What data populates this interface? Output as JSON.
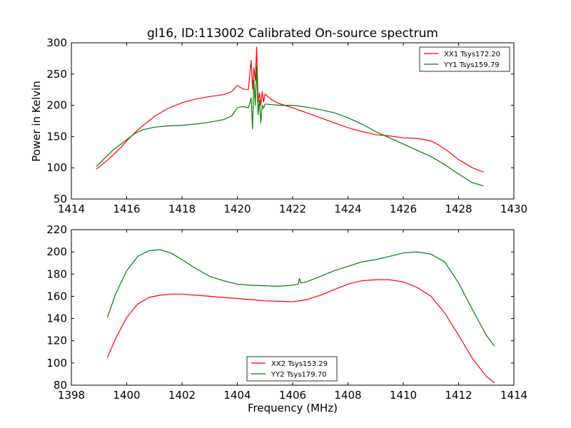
{
  "figure": {
    "title": "gl16, ID:113002 Calibrated On-source spectrum",
    "xlabel": "Frequency (MHz)",
    "ylabel": "Power in Kelvin"
  },
  "chart_data": [
    {
      "type": "line",
      "title": "gl16, ID:113002 Calibrated On-source spectrum",
      "xlabel": "",
      "ylabel": "Power in Kelvin",
      "xlim": [
        1414,
        1430
      ],
      "ylim": [
        50,
        300
      ],
      "xticks": [
        "1414",
        "1416",
        "1418",
        "1420",
        "1422",
        "1424",
        "1426",
        "1428",
        "1430"
      ],
      "yticks": [
        "50",
        "100",
        "150",
        "200",
        "250",
        "300"
      ],
      "legend_position": "top-right",
      "series": [
        {
          "name": "XX1 Tsys172.20",
          "color": "#ff0000",
          "x": [
            1414.9,
            1415.2,
            1415.5,
            1415.8,
            1416.0,
            1416.3,
            1416.6,
            1417.0,
            1417.5,
            1418.0,
            1418.5,
            1419.0,
            1419.5,
            1419.8,
            1420.0,
            1420.2,
            1420.4,
            1420.5,
            1420.55,
            1420.6,
            1420.65,
            1420.7,
            1420.75,
            1420.8,
            1420.85,
            1420.9,
            1420.95,
            1421.0,
            1421.2,
            1421.5,
            1422.0,
            1422.5,
            1423.0,
            1423.5,
            1424.0,
            1424.5,
            1425.0,
            1425.5,
            1426.0,
            1426.5,
            1427.0,
            1427.3,
            1427.6,
            1428.0,
            1428.5,
            1428.9
          ],
          "y": [
            98,
            108,
            120,
            133,
            143,
            156,
            168,
            182,
            195,
            204,
            210,
            214,
            217,
            222,
            232,
            226,
            225,
            272,
            226,
            260,
            240,
            293,
            205,
            220,
            200,
            222,
            205,
            218,
            210,
            203,
            196,
            188,
            180,
            172,
            164,
            158,
            153,
            151,
            148,
            147,
            143,
            136,
            127,
            113,
            100,
            93
          ]
        },
        {
          "name": "YY1 Tsys159.79",
          "color": "#008000",
          "x": [
            1414.9,
            1415.2,
            1415.5,
            1415.8,
            1416.0,
            1416.3,
            1416.6,
            1417.0,
            1417.5,
            1418.0,
            1418.5,
            1419.0,
            1419.5,
            1419.8,
            1420.0,
            1420.2,
            1420.4,
            1420.5,
            1420.55,
            1420.6,
            1420.65,
            1420.7,
            1420.75,
            1420.8,
            1420.85,
            1420.9,
            1420.95,
            1421.0,
            1421.5,
            1422.0,
            1422.5,
            1423.0,
            1423.5,
            1424.0,
            1424.5,
            1425.0,
            1425.5,
            1426.0,
            1426.5,
            1427.0,
            1427.5,
            1428.0,
            1428.5,
            1428.9
          ],
          "y": [
            102,
            115,
            128,
            138,
            145,
            155,
            161,
            165,
            167,
            168,
            170,
            173,
            177,
            183,
            196,
            198,
            196,
            212,
            162,
            240,
            200,
            262,
            185,
            208,
            172,
            200,
            195,
            202,
            200,
            200,
            197,
            193,
            188,
            180,
            170,
            158,
            148,
            138,
            128,
            118,
            105,
            90,
            76,
            71
          ]
        }
      ]
    },
    {
      "type": "line",
      "title": "",
      "xlabel": "Frequency (MHz)",
      "ylabel": "",
      "xlim": [
        1398,
        1414
      ],
      "ylim": [
        80,
        220
      ],
      "xticks": [
        "1398",
        "1400",
        "1402",
        "1404",
        "1406",
        "1408",
        "1410",
        "1412",
        "1414"
      ],
      "yticks": [
        "80",
        "100",
        "120",
        "140",
        "160",
        "180",
        "200",
        "220"
      ],
      "legend_position": "bottom-center",
      "series": [
        {
          "name": "XX2 Tsys153.29",
          "color": "#ff0000",
          "x": [
            1399.3,
            1399.6,
            1400.0,
            1400.4,
            1400.8,
            1401.2,
            1401.6,
            1402.0,
            1402.5,
            1403.0,
            1403.5,
            1404.0,
            1404.5,
            1405.0,
            1405.5,
            1406.0,
            1406.5,
            1407.0,
            1407.5,
            1408.0,
            1408.5,
            1409.0,
            1409.5,
            1410.0,
            1410.5,
            1411.0,
            1411.5,
            1412.0,
            1412.5,
            1413.0,
            1413.3
          ],
          "y": [
            105,
            122,
            141,
            153,
            159,
            161,
            162,
            162,
            161,
            160,
            159,
            158,
            157,
            156,
            155.5,
            155,
            157,
            161,
            166,
            171,
            174,
            175,
            175,
            173,
            168,
            160,
            145,
            125,
            104,
            88,
            82
          ]
        },
        {
          "name": "YY2 Tsys179.70",
          "color": "#008000",
          "x": [
            1399.3,
            1399.6,
            1400.0,
            1400.4,
            1400.8,
            1401.2,
            1401.6,
            1402.0,
            1402.5,
            1403.0,
            1403.5,
            1404.0,
            1404.5,
            1405.0,
            1405.5,
            1406.0,
            1406.2,
            1406.25,
            1406.3,
            1406.5,
            1407.0,
            1407.5,
            1408.0,
            1408.5,
            1409.0,
            1409.5,
            1410.0,
            1410.5,
            1411.0,
            1411.5,
            1412.0,
            1412.5,
            1413.0,
            1413.3
          ],
          "y": [
            141,
            162,
            183,
            196,
            201,
            202,
            199,
            193,
            185,
            178,
            174,
            171,
            170,
            169.5,
            169,
            170,
            171,
            176,
            172,
            173,
            178,
            183,
            187,
            191,
            193,
            196,
            199,
            200,
            198,
            191,
            172,
            148,
            125,
            115
          ]
        }
      ]
    }
  ]
}
